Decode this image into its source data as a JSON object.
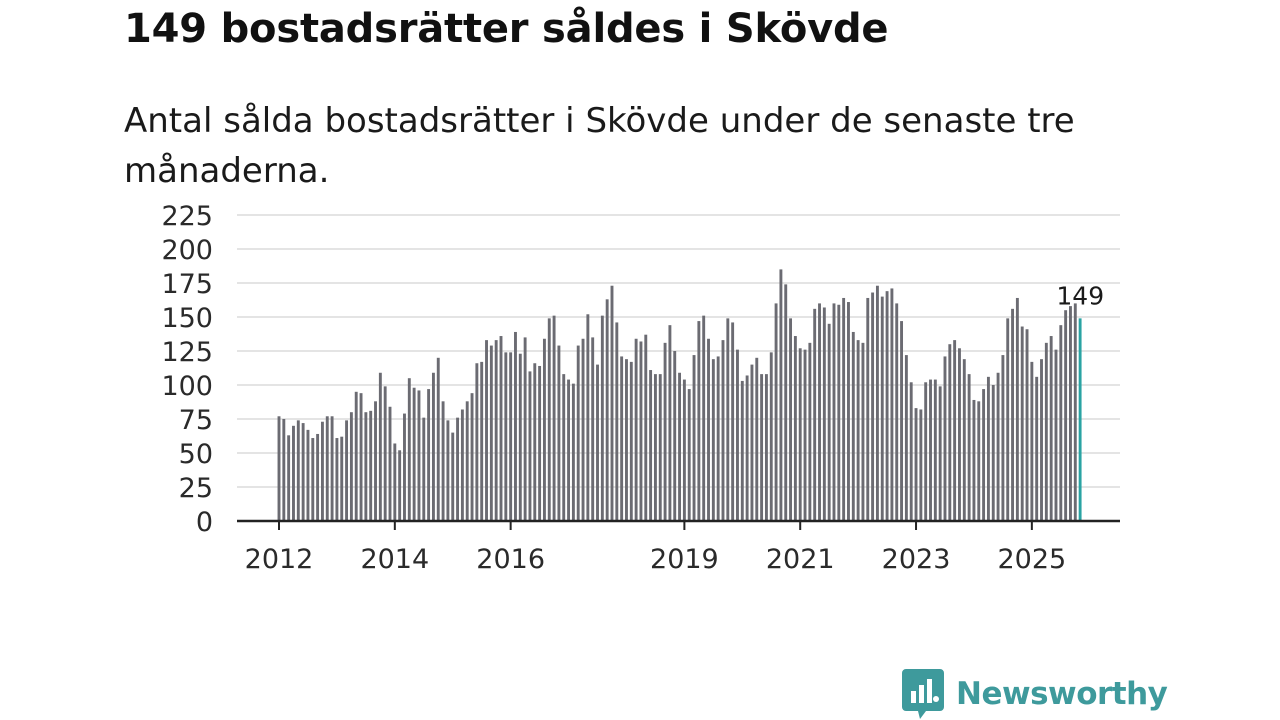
{
  "header": {
    "title": "149 bostadsrätter såldes i Skövde",
    "subtitle": "Antal sålda bostadsrätter i Skövde under de senaste tre månaderna."
  },
  "brand": {
    "name": "Newsworthy",
    "color": "#3e9a9c"
  },
  "colors": {
    "bar": "#6b6b72",
    "highlight": "#2aa3a3",
    "grid": "#dcdcdc",
    "axis": "#222222"
  },
  "chart_data": {
    "type": "bar",
    "title": "Antal sålda bostadsrätter i Skövde under de senaste tre månaderna.",
    "xlabel": "",
    "ylabel": "",
    "ylim": [
      0,
      225
    ],
    "yticks": [
      "0",
      "25",
      "50",
      "75",
      "100",
      "125",
      "150",
      "175",
      "200",
      "225"
    ],
    "xticks": [
      "2012",
      "2014",
      "2016",
      "2019",
      "2021",
      "2023",
      "2025"
    ],
    "grid": true,
    "start": "2012-01",
    "annotation": {
      "label": "149",
      "value": 149
    },
    "values": [
      77,
      75,
      63,
      70,
      74,
      72,
      67,
      61,
      64,
      73,
      77,
      77,
      61,
      62,
      74,
      80,
      95,
      94,
      80,
      81,
      88,
      109,
      99,
      84,
      57,
      52,
      79,
      105,
      98,
      96,
      76,
      97,
      109,
      120,
      88,
      74,
      65,
      76,
      82,
      88,
      94,
      116,
      117,
      133,
      129,
      133,
      136,
      124,
      124,
      139,
      123,
      135,
      110,
      116,
      114,
      134,
      149,
      151,
      129,
      108,
      104,
      101,
      129,
      134,
      152,
      135,
      115,
      151,
      163,
      173,
      146,
      121,
      119,
      117,
      134,
      132,
      137,
      111,
      108,
      108,
      131,
      144,
      125,
      109,
      104,
      97,
      122,
      147,
      151,
      134,
      119,
      121,
      133,
      149,
      146,
      126,
      103,
      107,
      115,
      120,
      108,
      108,
      124,
      160,
      185,
      174,
      149,
      136,
      127,
      126,
      131,
      156,
      160,
      157,
      145,
      160,
      159,
      164,
      161,
      139,
      133,
      131,
      164,
      168,
      173,
      165,
      169,
      171,
      160,
      147,
      122,
      102,
      83,
      82,
      102,
      104,
      104,
      99,
      121,
      130,
      133,
      127,
      119,
      108,
      89,
      88,
      97,
      106,
      100,
      109,
      122,
      149,
      156,
      164,
      143,
      141,
      117,
      106,
      119,
      131,
      136,
      126,
      144,
      155,
      158,
      160,
      149
    ]
  }
}
